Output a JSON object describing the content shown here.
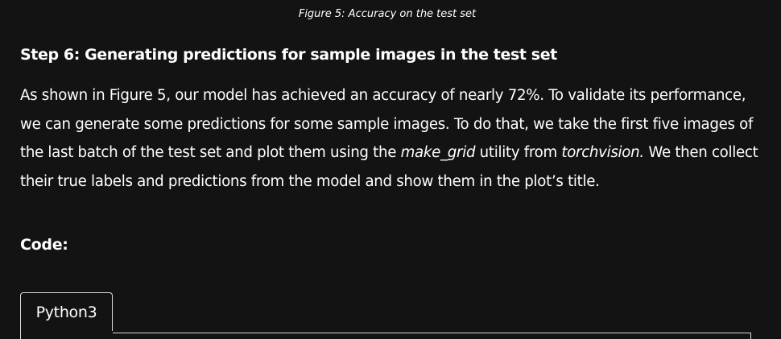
{
  "caption": "Figure 5: Accuracy on the test set",
  "heading": "Step 6: Generating predictions for sample images in the test set",
  "paragraph": {
    "part1": "As shown in Figure 5, our model has achieved an accuracy of nearly 72%. To validate its performance, we can generate some predictions for some sample images. To do that, we take the first five images of the last batch of the test set and plot them using the ",
    "em1": "make_grid",
    "part2": " utility from ",
    "em2": "torchvision.",
    "part3": " We then collect their true labels and predictions from the model and show them in the plot’s title."
  },
  "code_label": "Code:",
  "tabs": [
    {
      "label": "Python3"
    }
  ]
}
